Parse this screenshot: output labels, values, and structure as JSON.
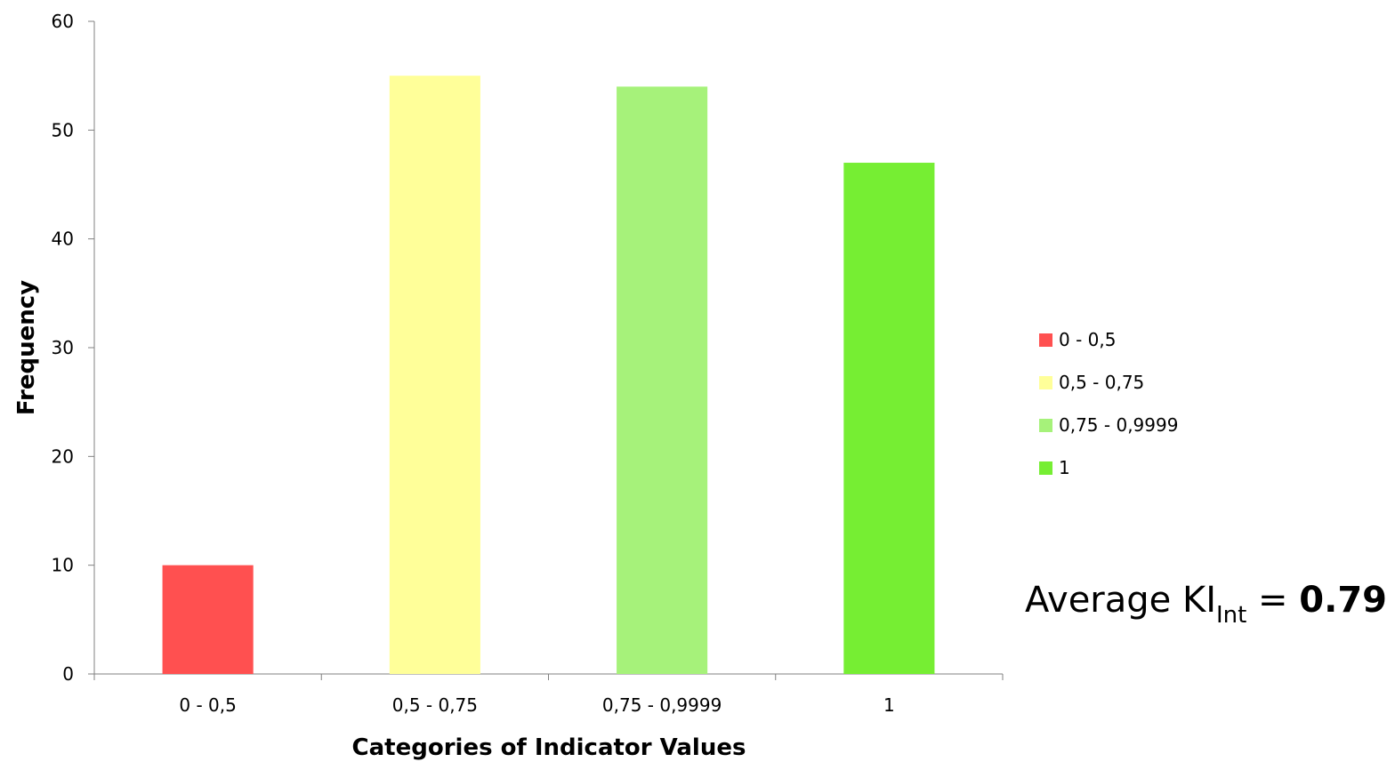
{
  "chart_data": {
    "type": "bar",
    "categories": [
      "0 - 0,5",
      "0,5 - 0,75",
      "0,75 - 0,9999",
      "1"
    ],
    "values": [
      10,
      55,
      54,
      47
    ],
    "colors": [
      "#ff5050",
      "#ffff99",
      "#a6f27a",
      "#76ee33"
    ],
    "xlabel": "Categories of Indicator Values",
    "ylabel": "Frequency",
    "ylim": [
      0,
      60
    ],
    "yticks": [
      0,
      10,
      20,
      30,
      40,
      50,
      60
    ],
    "grid": false,
    "legend": {
      "placement": "right",
      "entries": [
        "0 - 0,5",
        "0,5 - 0,75",
        "0,75 - 0,9999",
        "1"
      ]
    }
  },
  "annotation": {
    "prefix": "Average KI",
    "subscript": "Int",
    "equals": " = ",
    "value": "0.79"
  }
}
